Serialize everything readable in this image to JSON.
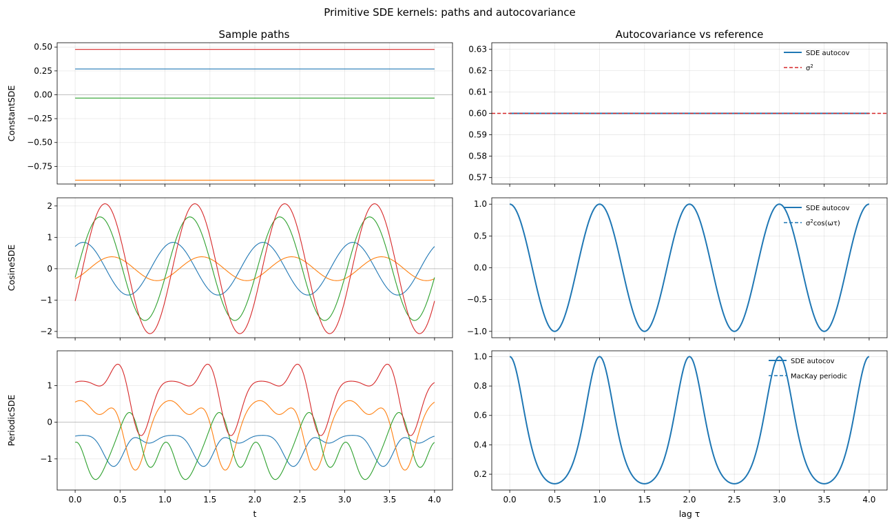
{
  "figure": {
    "suptitle": "Primitive SDE kernels: paths and autocovariance"
  },
  "columns": {
    "left_title": "Sample paths",
    "right_title": "Autocovariance vs reference"
  },
  "colors": {
    "blue": "#1f77b4",
    "orange": "#ff7f0e",
    "green": "#2ca02c",
    "red": "#d62728",
    "zero_line": "#999999"
  },
  "chart_data": [
    {
      "id": "constant-paths",
      "type": "line",
      "ylabel": "ConstantSDE",
      "xlabel": "",
      "xlim": [
        -0.2,
        4.2
      ],
      "ylim": [
        -0.935,
        0.545
      ],
      "xticks": [
        0,
        0.5,
        1,
        1.5,
        2,
        2.5,
        3,
        3.5,
        4
      ],
      "xticklabels": [
        "",
        "",
        "",
        "",
        "",
        "",
        "",
        "",
        ""
      ],
      "yticks": [
        -0.75,
        -0.5,
        -0.25,
        0,
        0.25,
        0.5
      ],
      "yticklabels": [
        "−0.75",
        "−0.50",
        "−0.25",
        "0.00",
        "0.25",
        "0.50"
      ],
      "zero_line": true,
      "grid": true,
      "series": [
        {
          "kind": "const",
          "value": 0.27,
          "color": "blue"
        },
        {
          "kind": "const",
          "value": -0.895,
          "color": "orange"
        },
        {
          "kind": "const",
          "value": -0.035,
          "color": "green"
        },
        {
          "kind": "const",
          "value": 0.475,
          "color": "red"
        }
      ]
    },
    {
      "id": "constant-autocov",
      "type": "line",
      "ylabel": "",
      "xlabel": "",
      "xlim": [
        -0.2,
        4.2
      ],
      "ylim": [
        0.567,
        0.633
      ],
      "xticks": [
        0,
        0.5,
        1,
        1.5,
        2,
        2.5,
        3,
        3.5,
        4
      ],
      "xticklabels": [
        "",
        "",
        "",
        "",
        "",
        "",
        "",
        "",
        ""
      ],
      "yticks": [
        0.57,
        0.58,
        0.59,
        0.6,
        0.61,
        0.62,
        0.63
      ],
      "yticklabels": [
        "0.57",
        "0.58",
        "0.59",
        "0.60",
        "0.61",
        "0.62",
        "0.63"
      ],
      "grid": true,
      "legend_position": "upper right",
      "series": [
        {
          "name": "SDE autocov",
          "kind": "const",
          "value": 0.6,
          "color": "blue",
          "width": 2,
          "x_range": [
            0,
            4
          ]
        },
        {
          "name": "σ2",
          "kind": "const",
          "value": 0.6,
          "color": "red",
          "width": 1.5,
          "dashed": true,
          "full_width": true
        }
      ],
      "legend": [
        {
          "label": "SDE autocov",
          "color": "blue",
          "dashed": false,
          "sup": ""
        },
        {
          "label": "σ",
          "color": "red",
          "dashed": true,
          "sup": "2"
        }
      ]
    },
    {
      "id": "cosine-paths",
      "type": "line",
      "ylabel": "CosineSDE",
      "xlabel": "",
      "xlim": [
        -0.2,
        4.2
      ],
      "ylim": [
        -2.2,
        2.26
      ],
      "xticks": [
        0,
        0.5,
        1,
        1.5,
        2,
        2.5,
        3,
        3.5,
        4
      ],
      "xticklabels": [
        "",
        "",
        "",
        "",
        "",
        "",
        "",
        "",
        ""
      ],
      "yticks": [
        -2,
        -1,
        0,
        1,
        2
      ],
      "yticklabels": [
        "−2",
        "−1",
        "0",
        "1",
        "2"
      ],
      "zero_line": true,
      "grid": true,
      "series": [
        {
          "kind": "sine",
          "amplitude": 0.84,
          "phase": 1.0,
          "period": 1,
          "color": "blue"
        },
        {
          "kind": "sine",
          "amplitude": 0.38,
          "phase": -1.0,
          "period": 1,
          "color": "orange"
        },
        {
          "kind": "sine",
          "amplitude": 1.65,
          "phase": -0.17,
          "period": 1,
          "color": "green"
        },
        {
          "kind": "sine",
          "amplitude": 2.07,
          "phase": -0.52,
          "period": 1,
          "color": "red"
        }
      ]
    },
    {
      "id": "cosine-autocov",
      "type": "line",
      "ylabel": "",
      "xlabel": "",
      "xlim": [
        -0.2,
        4.2
      ],
      "ylim": [
        -1.1,
        1.1
      ],
      "xticks": [
        0,
        0.5,
        1,
        1.5,
        2,
        2.5,
        3,
        3.5,
        4
      ],
      "xticklabels": [
        "",
        "",
        "",
        "",
        "",
        "",
        "",
        "",
        ""
      ],
      "yticks": [
        -1,
        -0.5,
        0,
        0.5,
        1
      ],
      "yticklabels": [
        "−1.0",
        "−0.5",
        "0.0",
        "0.5",
        "1.0"
      ],
      "grid": true,
      "legend_position": "upper right",
      "series": [
        {
          "name": "SDE autocov",
          "kind": "cosacf",
          "color": "blue",
          "width": 2
        }
      ],
      "legend": [
        {
          "label": "SDE autocov",
          "color": "blue",
          "dashed": false,
          "sup": ""
        },
        {
          "label": "σ",
          "color": "blue",
          "dashed": true,
          "sup": "2",
          "rest": "cos(ωτ)"
        }
      ]
    },
    {
      "id": "periodic-paths",
      "type": "line",
      "ylabel": "PeriodicSDE",
      "xlabel": "t",
      "xlim": [
        -0.2,
        4.2
      ],
      "ylim": [
        -1.85,
        1.95
      ],
      "xticks": [
        0,
        0.5,
        1,
        1.5,
        2,
        2.5,
        3,
        3.5,
        4
      ],
      "xticklabels": [
        "0.0",
        "0.5",
        "1.0",
        "1.5",
        "2.0",
        "2.5",
        "3.0",
        "3.5",
        "4.0"
      ],
      "yticks": [
        -1,
        0,
        1
      ],
      "yticklabels": [
        "−1",
        "0",
        "1"
      ],
      "zero_line": true,
      "grid": true,
      "series": [
        {
          "kind": "periodic",
          "seed": 1,
          "color": "blue"
        },
        {
          "kind": "periodic",
          "seed": 2,
          "color": "orange"
        },
        {
          "kind": "periodic",
          "seed": 3,
          "color": "green"
        },
        {
          "kind": "periodic",
          "seed": 4,
          "color": "red"
        }
      ]
    },
    {
      "id": "periodic-autocov",
      "type": "line",
      "ylabel": "",
      "xlabel": "lag τ",
      "xlim": [
        -0.2,
        4.2
      ],
      "ylim": [
        0.0925,
        1.0395
      ],
      "xticks": [
        0,
        0.5,
        1,
        1.5,
        2,
        2.5,
        3,
        3.5,
        4
      ],
      "xticklabels": [
        "0.0",
        "0.5",
        "1.0",
        "1.5",
        "2.0",
        "2.5",
        "3.0",
        "3.5",
        "4.0"
      ],
      "yticks": [
        0.2,
        0.4,
        0.6,
        0.8,
        1.0
      ],
      "yticklabels": [
        "0.2",
        "0.4",
        "0.6",
        "0.8",
        "1.0"
      ],
      "grid": true,
      "legend_position": "upper right",
      "series": [
        {
          "name": "SDE autocov",
          "kind": "mackay",
          "color": "blue",
          "width": 2
        }
      ],
      "legend": [
        {
          "label": "SDE autocov",
          "color": "blue",
          "dashed": false,
          "sup": ""
        },
        {
          "label": "MacKay periodic",
          "color": "blue",
          "dashed": true,
          "sup": ""
        }
      ]
    }
  ]
}
